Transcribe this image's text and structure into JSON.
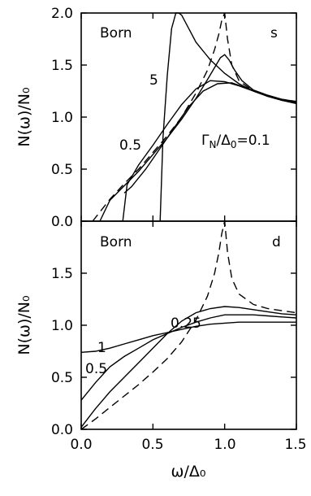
{
  "chart_data": [
    {
      "type": "line",
      "panel": "s",
      "ylabel": "N(ω)/N₀",
      "xlim": [
        0,
        1.5
      ],
      "ylim": [
        0,
        2.0
      ],
      "yticks": [
        "0.0",
        "0.5",
        "1.0",
        "1.5",
        "2.0"
      ],
      "annotations": {
        "scheme": "Born",
        "symmetry": "s",
        "gamma_prefix": "Γ",
        "gamma_sub": "N",
        "gamma_mid": "/Δ",
        "gamma_sub2": "0",
        "gamma_value": "=0.1",
        "label_5": "5",
        "label_05": "0.5"
      },
      "series": [
        {
          "name": "",
          "dashed": true,
          "x": [
            0.08,
            0.2,
            0.3,
            0.4,
            0.5,
            0.6,
            0.7,
            0.8,
            0.88,
            0.93,
            0.96,
            0.98,
            1.0,
            1.02,
            1.05,
            1.1,
            1.2,
            1.3,
            1.4,
            1.5
          ],
          "y": [
            0.0,
            0.21,
            0.36,
            0.5,
            0.66,
            0.82,
            1.0,
            1.23,
            1.45,
            1.65,
            1.8,
            1.93,
            2.0,
            1.75,
            1.5,
            1.35,
            1.25,
            1.2,
            1.17,
            1.15
          ]
        },
        {
          "name": "",
          "dashed": false,
          "x": [
            0.13,
            0.2,
            0.3,
            0.4,
            0.5,
            0.6,
            0.7,
            0.8,
            0.88,
            0.94,
            0.97,
            1.0,
            1.03,
            1.07,
            1.12,
            1.2,
            1.3,
            1.4,
            1.5
          ],
          "y": [
            0.0,
            0.2,
            0.34,
            0.48,
            0.64,
            0.8,
            0.98,
            1.18,
            1.36,
            1.5,
            1.57,
            1.6,
            1.55,
            1.45,
            1.35,
            1.26,
            1.21,
            1.17,
            1.15
          ]
        },
        {
          "name": "",
          "dashed": false,
          "x": [
            0.29,
            0.32,
            0.4,
            0.5,
            0.6,
            0.7,
            0.8,
            0.9,
            1.0,
            1.1,
            1.2,
            1.3,
            1.4,
            1.5
          ],
          "y": [
            0.0,
            0.35,
            0.54,
            0.73,
            0.93,
            1.12,
            1.27,
            1.35,
            1.34,
            1.3,
            1.25,
            1.2,
            1.16,
            1.13
          ]
        },
        {
          "name": "",
          "dashed": false,
          "x": [
            0.3,
            0.35,
            0.45,
            0.55,
            0.65,
            0.75,
            0.85,
            0.95,
            1.05,
            1.15,
            1.25,
            1.35,
            1.45,
            1.5
          ],
          "y": [
            0.27,
            0.33,
            0.5,
            0.7,
            0.9,
            1.1,
            1.25,
            1.32,
            1.33,
            1.28,
            1.23,
            1.18,
            1.15,
            1.14
          ]
        },
        {
          "name": "",
          "dashed": false,
          "x": [
            0.55,
            0.57,
            0.6,
            0.63,
            0.66,
            0.68,
            0.7,
            0.75,
            0.8,
            0.9,
            1.0,
            1.1,
            1.2,
            1.3,
            1.4,
            1.5
          ],
          "y": [
            0.0,
            0.8,
            1.4,
            1.85,
            2.0,
            2.0,
            1.98,
            1.85,
            1.72,
            1.55,
            1.42,
            1.32,
            1.25,
            1.2,
            1.16,
            1.14
          ]
        }
      ]
    },
    {
      "type": "line",
      "panel": "d",
      "xlabel": "ω/Δ₀",
      "ylabel": "N(ω)/N₀",
      "xlim": [
        0,
        1.5
      ],
      "ylim": [
        0,
        2.0
      ],
      "xticks": [
        "0.0",
        "0.5",
        "1.0",
        "1.5"
      ],
      "yticks": [
        "0.0",
        "0.5",
        "1.0",
        "1.5"
      ],
      "annotations": {
        "scheme": "Born",
        "symmetry": "d",
        "label_025": "0.25",
        "label_1": "1",
        "label_05": "0.5"
      },
      "series": [
        {
          "name": "",
          "dashed": true,
          "x": [
            0.0,
            0.1,
            0.2,
            0.3,
            0.4,
            0.5,
            0.6,
            0.7,
            0.8,
            0.88,
            0.93,
            0.96,
            0.98,
            1.0,
            1.02,
            1.05,
            1.1,
            1.2,
            1.3,
            1.4,
            1.5
          ],
          "y": [
            0.0,
            0.1,
            0.21,
            0.32,
            0.43,
            0.55,
            0.68,
            0.84,
            1.05,
            1.28,
            1.5,
            1.7,
            1.88,
            2.0,
            1.7,
            1.45,
            1.3,
            1.2,
            1.16,
            1.14,
            1.12
          ]
        },
        {
          "name": "",
          "dashed": false,
          "x": [
            0.0,
            0.1,
            0.2,
            0.3,
            0.4,
            0.5,
            0.6,
            0.7,
            0.8,
            0.9,
            1.0,
            1.1,
            1.2,
            1.3,
            1.4,
            1.5
          ],
          "y": [
            0.02,
            0.2,
            0.36,
            0.5,
            0.64,
            0.78,
            0.92,
            1.04,
            1.12,
            1.16,
            1.18,
            1.17,
            1.15,
            1.13,
            1.11,
            1.1
          ]
        },
        {
          "name": "",
          "dashed": false,
          "x": [
            0.0,
            0.1,
            0.2,
            0.3,
            0.4,
            0.5,
            0.6,
            0.7,
            0.8,
            0.9,
            1.0,
            1.1,
            1.2,
            1.3,
            1.4,
            1.5
          ],
          "y": [
            0.28,
            0.45,
            0.6,
            0.7,
            0.78,
            0.86,
            0.92,
            0.98,
            1.03,
            1.07,
            1.1,
            1.1,
            1.1,
            1.09,
            1.08,
            1.07
          ]
        },
        {
          "name": "",
          "dashed": false,
          "x": [
            0.0,
            0.1,
            0.2,
            0.3,
            0.4,
            0.5,
            0.6,
            0.7,
            0.8,
            0.9,
            1.0,
            1.1,
            1.2,
            1.3,
            1.4,
            1.5
          ],
          "y": [
            0.74,
            0.75,
            0.78,
            0.82,
            0.86,
            0.9,
            0.93,
            0.96,
            0.99,
            1.01,
            1.02,
            1.03,
            1.03,
            1.03,
            1.03,
            1.03
          ]
        }
      ]
    }
  ]
}
